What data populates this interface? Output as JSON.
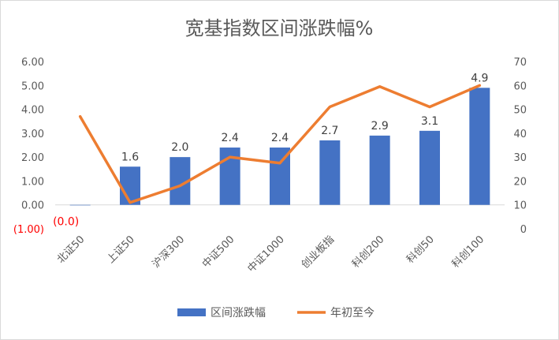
{
  "chart_data": {
    "type": "bar",
    "title": "宽基指数区间涨跌幅%",
    "categories": [
      "北证50",
      "上证50",
      "沪深300",
      "中证500",
      "中证1000",
      "创业板指",
      "科创200",
      "科创50",
      "科创100"
    ],
    "series": [
      {
        "name": "区间涨跌幅",
        "type": "bar",
        "axis": "left",
        "color": "#4472c4",
        "values": [
          -0.02,
          1.6,
          2.0,
          2.4,
          2.4,
          2.7,
          2.9,
          3.1,
          4.9
        ],
        "labels": [
          "(0.0)",
          "1.6",
          "2.0",
          "2.4",
          "2.4",
          "2.7",
          "2.9",
          "3.1",
          "4.9"
        ]
      },
      {
        "name": "年初至今",
        "type": "line",
        "axis": "right",
        "color": "#ed7d31",
        "values": [
          47,
          11,
          18,
          30,
          27.5,
          51,
          59.5,
          51,
          60
        ]
      }
    ],
    "y_left": {
      "min": -1,
      "max": 6,
      "step": 1,
      "tick_labels": [
        "(1.00)",
        "0.00",
        "1.00",
        "2.00",
        "3.00",
        "4.00",
        "5.00",
        "6.00"
      ]
    },
    "y_right": {
      "min": 0,
      "max": 70,
      "step": 10,
      "tick_labels": [
        "0",
        "10",
        "20",
        "30",
        "40",
        "50",
        "60",
        "70"
      ]
    },
    "negative_color": "#ff0000",
    "grid": false,
    "legend": "bottom"
  }
}
